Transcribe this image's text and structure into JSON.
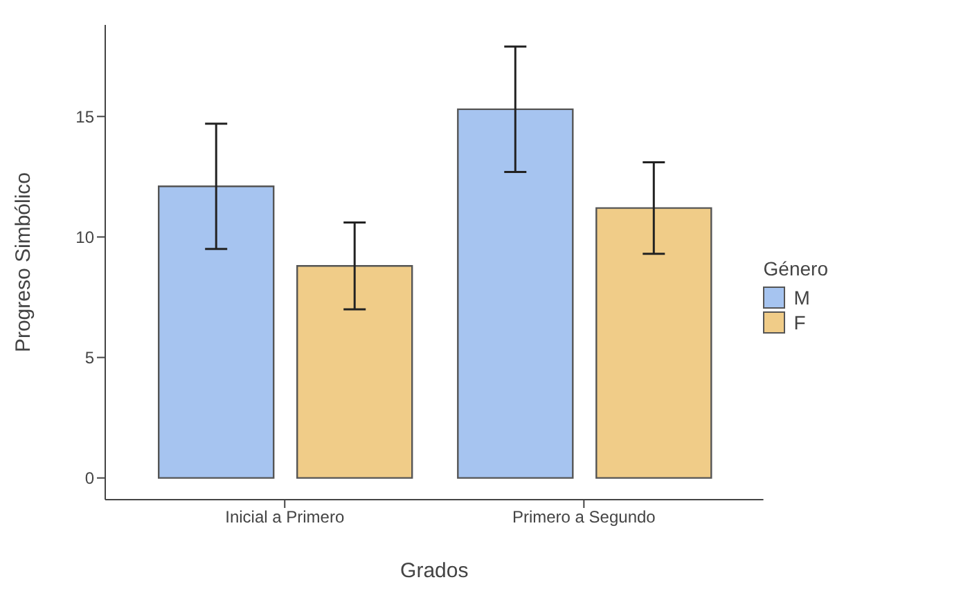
{
  "chart_data": {
    "type": "bar",
    "xlabel": "Grados",
    "ylabel": "Progreso Simbólico",
    "legend_title": "Género",
    "categories": [
      "Inicial a Primero",
      "Primero a Segundo"
    ],
    "series": [
      {
        "name": "M",
        "color": "#a6c4f0",
        "values": [
          12.1,
          15.3
        ],
        "errors": [
          2.6,
          2.6
        ]
      },
      {
        "name": "F",
        "color": "#f0cc88",
        "values": [
          8.8,
          11.2
        ],
        "errors": [
          1.8,
          1.9
        ]
      }
    ],
    "ylim": [
      -0.9,
      18.8
    ],
    "yticks": [
      0,
      5,
      10,
      15
    ],
    "grid": false,
    "legend": "right"
  }
}
